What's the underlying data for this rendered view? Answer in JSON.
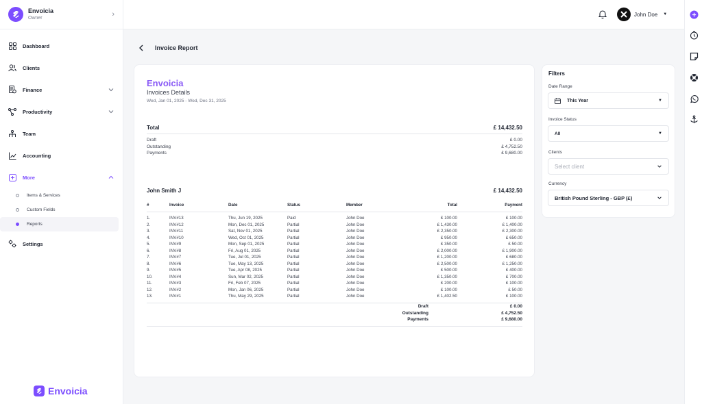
{
  "brand": {
    "name": "Envoicia",
    "role": "Owner"
  },
  "nav": {
    "dashboard": "Dashboard",
    "clients": "Clients",
    "finance": "Finance",
    "productivity": "Productivity",
    "team": "Team",
    "accounting": "Accounting",
    "more": "More",
    "sub": [
      "Items & Services",
      "Custom Fields",
      "Reports"
    ],
    "settings": "Settings"
  },
  "footer_brand": "Envoicia",
  "user": {
    "name": "John Doe"
  },
  "page": {
    "title": "Invoice Report"
  },
  "report": {
    "brand": "Envoicia",
    "subtitle": "Invoices Details",
    "range": "Wed, Jan 01, 2025 - Wed, Dec 31, 2025",
    "total_label": "Total",
    "total_value": "£ 14,432.50",
    "summary": [
      {
        "label": "Draft",
        "value": "£ 0.00"
      },
      {
        "label": "Outstanding",
        "value": "£ 4,752.50"
      },
      {
        "label": "Payments",
        "value": "£ 9,680.00"
      }
    ],
    "client_name": "John Smith J",
    "client_total": "£ 14,432.50",
    "columns": [
      "#",
      "Invoice",
      "Date",
      "Status",
      "Member",
      "Total",
      "Payment"
    ],
    "rows": [
      [
        "1.",
        "INV#13",
        "Thu, Jun 19, 2025",
        "Paid",
        "John Doe",
        "£ 100.00",
        "£ 100.00"
      ],
      [
        "2.",
        "INV#12",
        "Mon, Dec 01, 2025",
        "Partial",
        "John Doe",
        "£ 1,430.00",
        "£ 1,400.00"
      ],
      [
        "3.",
        "INV#11",
        "Sat, Nov 01, 2025",
        "Partial",
        "John Doe",
        "£ 2,350.00",
        "£ 2,300.00"
      ],
      [
        "4.",
        "INV#10",
        "Wed, Oct 01, 2025",
        "Partial",
        "John Doe",
        "£ 950.00",
        "£ 650.00"
      ],
      [
        "5.",
        "INV#9",
        "Mon, Sep 01, 2025",
        "Partial",
        "John Doe",
        "£ 350.00",
        "£ 50.00"
      ],
      [
        "6.",
        "INV#8",
        "Fri, Aug 01, 2025",
        "Partial",
        "John Doe",
        "£ 2,000.00",
        "£ 1,900.00"
      ],
      [
        "7.",
        "INV#7",
        "Tue, Jul 01, 2025",
        "Partial",
        "John Doe",
        "£ 1,200.00",
        "£ 680.00"
      ],
      [
        "8.",
        "INV#6",
        "Tue, May 13, 2025",
        "Partial",
        "John Doe",
        "£ 2,500.00",
        "£ 1,250.00"
      ],
      [
        "9.",
        "INV#5",
        "Tue, Apr 08, 2025",
        "Partial",
        "John Doe",
        "£ 500.00",
        "£ 400.00"
      ],
      [
        "10.",
        "INV#4",
        "Sun, Mar 02, 2025",
        "Partial",
        "John Doe",
        "£ 1,350.00",
        "£ 700.00"
      ],
      [
        "11.",
        "INV#3",
        "Fri, Feb 07, 2025",
        "Partial",
        "John Doe",
        "£ 200.00",
        "£ 100.00"
      ],
      [
        "12.",
        "INV#2",
        "Mon, Jan 06, 2025",
        "Partial",
        "John Doe",
        "£ 100.00",
        "£ 50.00"
      ],
      [
        "13.",
        "INV#1",
        "Thu, May 29, 2025",
        "Partial",
        "John Doe",
        "£ 1,402.50",
        "£ 100.00"
      ]
    ],
    "totals": [
      {
        "label": "Draft",
        "value": "£ 0.00"
      },
      {
        "label": "Outstanding",
        "value": "£ 4,752.50"
      },
      {
        "label": "Payments",
        "value": "£ 9,680.00"
      }
    ]
  },
  "filters": {
    "title": "Filters",
    "date_range_label": "Date Range",
    "date_range_value": "This Year",
    "status_label": "Invoice Status",
    "status_value": "All",
    "clients_label": "Clients",
    "clients_placeholder": "Select client",
    "currency_label": "Currency",
    "currency_value": "British Pound Sterling - GBP (£)"
  },
  "colors": {
    "accent": "#7c4dff",
    "brand_text": "#8b5cf6"
  },
  "icons": [
    "dashboard-icon",
    "clients-icon",
    "finance-icon",
    "productivity-icon",
    "team-icon",
    "accounting-icon",
    "more-icon",
    "settings-icon",
    "bell-icon",
    "plus-icon",
    "timer-icon",
    "note-icon",
    "lifebuoy-icon",
    "whatsapp-icon",
    "anchor-icon",
    "calendar-icon",
    "back-arrow-icon"
  ]
}
